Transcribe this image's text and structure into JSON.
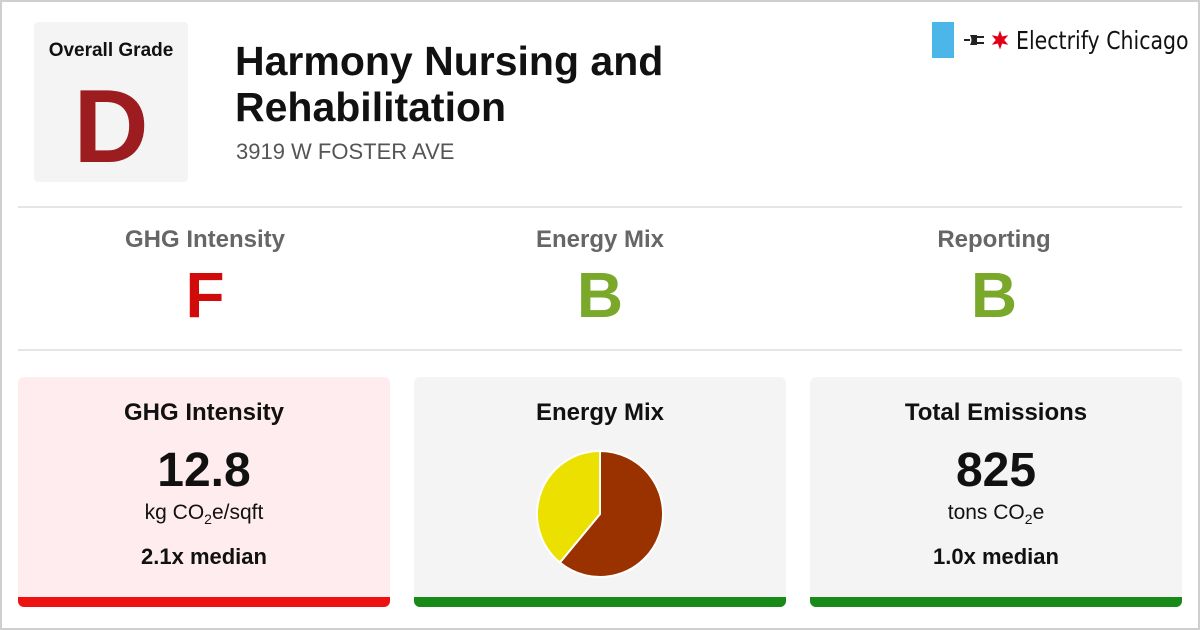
{
  "overall": {
    "label": "Overall Grade",
    "grade": "D",
    "color": "#9c1c20"
  },
  "building": {
    "name": "Harmony Nursing and Rehabilitation",
    "address": "3919 W FOSTER AVE"
  },
  "brand": {
    "name": "Electrify Chicago",
    "flag_color": "#4db6e8",
    "star_color": "#e3001b",
    "icons": [
      "plug-icon",
      "star-icon"
    ]
  },
  "subgrades": [
    {
      "label": "GHG Intensity",
      "grade": "F",
      "color": "#d10a0a"
    },
    {
      "label": "Energy Mix",
      "grade": "B",
      "color": "#7aa82a"
    },
    {
      "label": "Reporting",
      "grade": "B",
      "color": "#7aa82a"
    }
  ],
  "cards": {
    "ghg": {
      "title": "GHG Intensity",
      "value": "12.8",
      "unit_base": "kg CO",
      "unit_sub": "2",
      "unit_rest": "e/sqft",
      "median": "2.1x median",
      "bar_color": "#ee1111",
      "bg_color": "#ffecee"
    },
    "mix": {
      "title": "Energy Mix",
      "bar_color": "#178a17"
    },
    "total": {
      "title": "Total Emissions",
      "value": "825",
      "unit_base": "tons CO",
      "unit_sub": "2",
      "unit_rest": "e",
      "median": "1.0x median",
      "bar_color": "#178a17"
    }
  },
  "chart_data": {
    "type": "pie",
    "slices": [
      {
        "value": 61,
        "color": "#9a3200"
      },
      {
        "value": 39,
        "color": "#ebe000"
      }
    ]
  }
}
